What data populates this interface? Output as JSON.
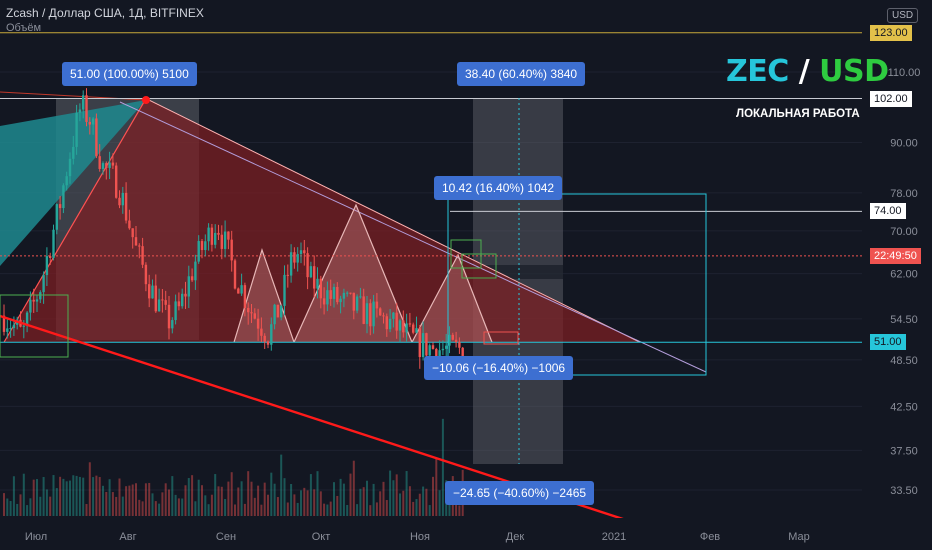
{
  "header": {
    "title": "Zcash / Доллар США, 1Д, BITFINEX",
    "subtitle": "Объём",
    "currency_badge": "USD"
  },
  "pair": {
    "base": "ZEC",
    "separator": "/",
    "quote": "USD"
  },
  "caption": "ЛОКАЛЬНАЯ РАБОТА",
  "measure_labels": [
    "51.00 (100.00%) 5100",
    "38.40 (60.40%) 3840",
    "10.42 (16.40%) 1042",
    "−10.06 (−16.40%) −1006",
    "−24.65 (−40.60%) −2465"
  ],
  "price_labels": [
    {
      "text": "123.00",
      "value": 123,
      "bg": "#e3c14a",
      "fg": "#131722"
    },
    {
      "text": "102.00",
      "value": 102,
      "bg": "#ffffff",
      "fg": "#131722"
    },
    {
      "text": "74.00",
      "value": 74,
      "bg": "#ffffff",
      "fg": "#131722"
    },
    {
      "text": "22:49:50",
      "value": 65.2,
      "bg": "#ef5350",
      "fg": "#ffffff"
    },
    {
      "text": "51.00",
      "value": 51,
      "bg": "#26c6da",
      "fg": "#131722"
    }
  ],
  "colors": {
    "background": "#131722",
    "up": "#26a69a",
    "down": "#ef5350",
    "triangle": "#7e1e22",
    "trend_red": "#ff1a1a",
    "level_line": "#c8cbd2",
    "yellow_line": "#c8a83a",
    "measure_box": "#26c6da",
    "green_box": "#4caf50",
    "label_blue": "#3d6fd1",
    "purple_line": "#b39ddb"
  },
  "chart_data": {
    "type": "candlestick",
    "y_scale": "log",
    "ylim": [
      31,
      130
    ],
    "y_ticks": [
      33.5,
      37.5,
      42.5,
      48.5,
      54.5,
      62.0,
      70.0,
      78.0,
      90.0,
      110.0
    ],
    "x_ticks": [
      "Июл",
      "Авг",
      "Сен",
      "Окт",
      "Ноя",
      "Дек",
      "2021",
      "Фев",
      "Мар"
    ],
    "current_price": 65.2,
    "horizontal_levels": [
      123,
      102,
      74,
      51
    ],
    "triangle_pattern": {
      "top_price": 102,
      "base_price": 51
    },
    "candle_count": 140,
    "keypoints": [
      [
        0,
        55
      ],
      [
        12,
        52
      ],
      [
        24,
        60
      ],
      [
        36,
        75
      ],
      [
        50,
        100
      ],
      [
        56,
        96
      ],
      [
        64,
        84
      ],
      [
        74,
        80
      ],
      [
        86,
        66
      ],
      [
        96,
        59
      ],
      [
        106,
        54
      ],
      [
        114,
        56
      ],
      [
        124,
        64
      ],
      [
        138,
        72
      ],
      [
        150,
        62
      ],
      [
        160,
        56
      ],
      [
        172,
        52
      ],
      [
        180,
        57
      ],
      [
        186,
        64
      ],
      [
        192,
        66
      ],
      [
        198,
        61
      ],
      [
        212,
        58
      ],
      [
        230,
        56
      ],
      [
        250,
        54
      ],
      [
        268,
        51
      ],
      [
        280,
        50
      ],
      [
        300,
        50
      ]
    ]
  }
}
